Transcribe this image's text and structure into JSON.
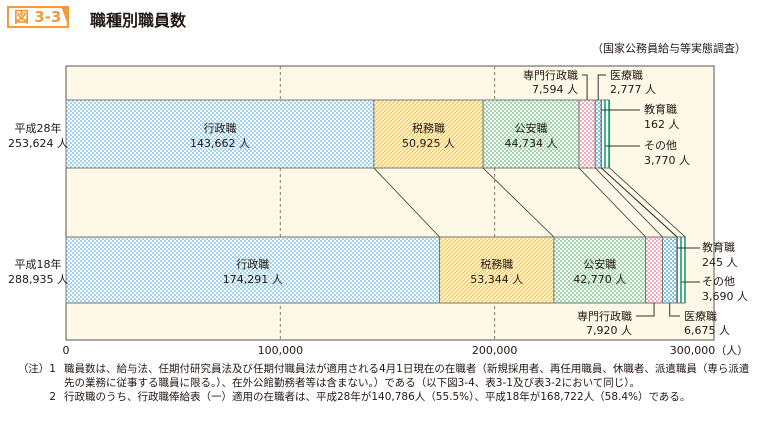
{
  "figure": {
    "number": "図 3-3",
    "title": "職種別職員数",
    "source": "（国家公務員給与等実態調査）"
  },
  "chart_data": {
    "type": "bar",
    "orientation": "horizontal-stacked",
    "unit_label": "（人）",
    "xlim": [
      0,
      300000
    ],
    "ticks": [
      0,
      100000,
      200000,
      300000
    ],
    "tick_labels": [
      "0",
      "100,000",
      "200,000",
      "300,000（人）"
    ],
    "grid": "dashed vertical at 100,000 and 200,000",
    "categories": [
      {
        "label": "平成28年",
        "total": "253,624 人"
      },
      {
        "label": "平成18年",
        "total": "288,935 人"
      }
    ],
    "series": [
      {
        "name": "行政職",
        "values": [
          143662,
          174291
        ],
        "labels": [
          "143,662 人",
          "174,291 人"
        ],
        "color": "#9fd3ef"
      },
      {
        "name": "税務職",
        "values": [
          50925,
          53344
        ],
        "labels": [
          "50,925 人",
          "53,344 人"
        ],
        "color": "#f7c948"
      },
      {
        "name": "公安職",
        "values": [
          44734,
          42770
        ],
        "labels": [
          "44,734 人",
          "42,770 人"
        ],
        "color": "#9dd7a8"
      },
      {
        "name": "専門行政職",
        "values": [
          7594,
          7920
        ],
        "labels": [
          "7,594 人",
          "7,920 人"
        ],
        "color": "#f5a8b8"
      },
      {
        "name": "医療職",
        "values": [
          2777,
          6675
        ],
        "labels": [
          "2,777 人",
          "6,675 人"
        ],
        "color": "#7fc4ea"
      },
      {
        "name": "教育職",
        "values": [
          162,
          245
        ],
        "labels": [
          "162 人",
          "245 人"
        ],
        "color": "#f2b56b"
      },
      {
        "name": "その他",
        "values": [
          3770,
          3690
        ],
        "labels": [
          "3,770 人",
          "3,690 人"
        ],
        "color": "#3fb38c"
      }
    ]
  },
  "notes": [
    {
      "num": "（注）1",
      "text": "職員数は、給与法、任期付研究員法及び任期付職員法が適用される4月1日現在の在職者（新規採用者、再任用職員、休職者、派遣職員（専ら派遣先の業務に従事する職員に限る。）、在外公館勤務者等は含まない。）である（以下図3-4、表3-1及び表3-2において同じ）。"
    },
    {
      "num": "2",
      "text": "行政職のうち、行政職俸給表（一）適用の在職者は、平成28年が140,786人（55.5%）、平成18年が168,722人（58.4%）である。"
    }
  ]
}
